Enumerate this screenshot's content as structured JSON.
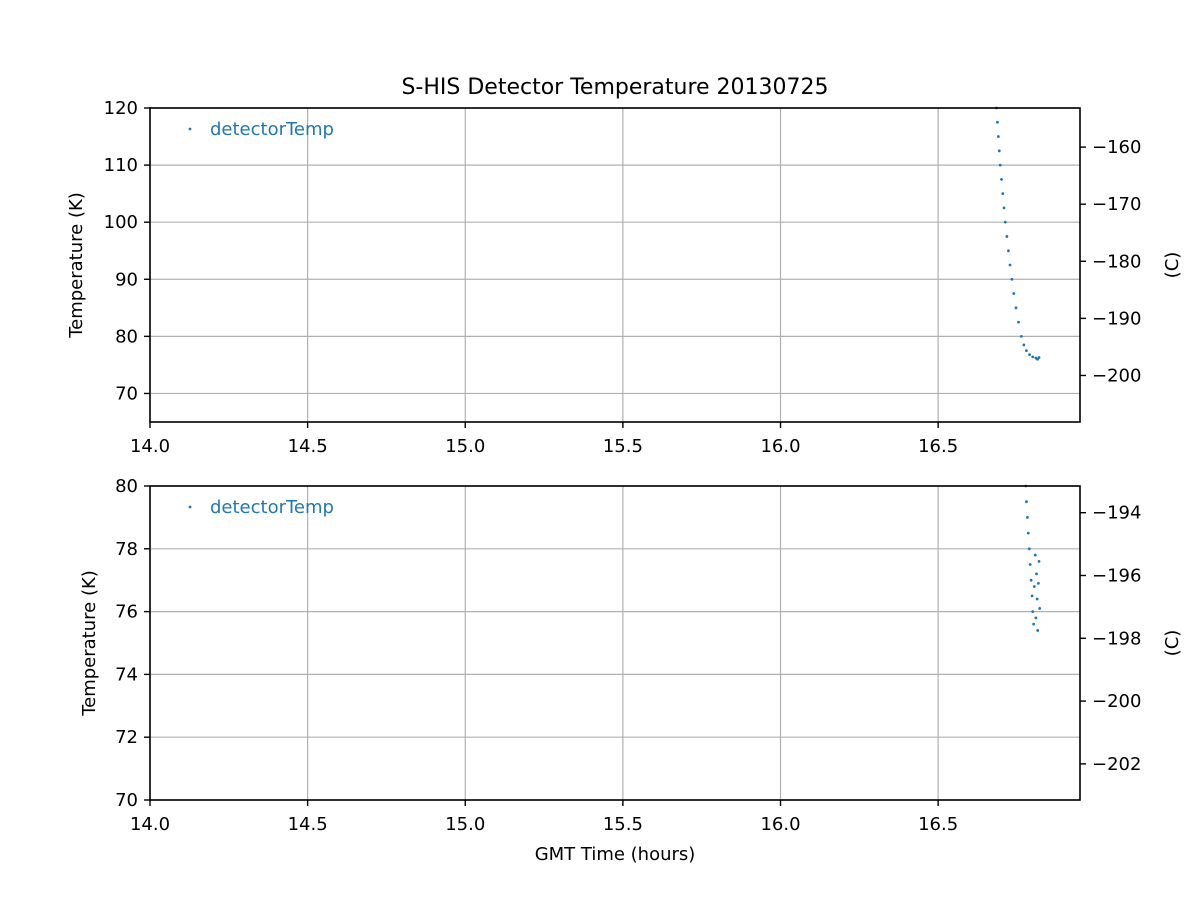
{
  "chart_data": {
    "type": "scatter",
    "title": "S-HIS Detector Temperature 20130725",
    "xlabel": "GMT Time (hours)",
    "series_color": "#1f77b4",
    "panels": [
      {
        "ylabel": "Temperature (K)",
        "ylabel_right": "(C)",
        "xlim": [
          14.0,
          16.95
        ],
        "ylim": [
          65,
          120
        ],
        "xticks": [
          "14.0",
          "14.5",
          "15.0",
          "15.5",
          "16.0",
          "16.5"
        ],
        "xtick_values": [
          14.0,
          14.5,
          15.0,
          15.5,
          16.0,
          16.5
        ],
        "yticks": [
          70,
          80,
          90,
          100,
          110,
          120
        ],
        "yticks_right": [
          -160,
          -170,
          -180,
          -190,
          -200
        ],
        "grid": true,
        "legend": "top-left",
        "series": [
          {
            "name": "detectorTemp",
            "points": [
              [
                16.685,
                120.0
              ],
              [
                16.688,
                117.5
              ],
              [
                16.691,
                115.0
              ],
              [
                16.694,
                112.5
              ],
              [
                16.697,
                110.0
              ],
              [
                16.701,
                107.5
              ],
              [
                16.705,
                105.0
              ],
              [
                16.709,
                102.5
              ],
              [
                16.713,
                100.0
              ],
              [
                16.718,
                97.5
              ],
              [
                16.723,
                95.0
              ],
              [
                16.728,
                92.5
              ],
              [
                16.734,
                90.0
              ],
              [
                16.74,
                87.5
              ],
              [
                16.747,
                85.0
              ],
              [
                16.755,
                82.5
              ],
              [
                16.764,
                80.0
              ],
              [
                16.772,
                78.5
              ],
              [
                16.78,
                77.5
              ],
              [
                16.79,
                76.8
              ],
              [
                16.8,
                76.4
              ],
              [
                16.81,
                76.2
              ],
              [
                16.815,
                76.0
              ],
              [
                16.82,
                76.3
              ]
            ]
          }
        ]
      },
      {
        "ylabel": "Temperature (K)",
        "ylabel_right": "(C)",
        "xlim": [
          14.0,
          16.95
        ],
        "ylim": [
          70,
          80
        ],
        "xticks": [
          "14.0",
          "14.5",
          "15.0",
          "15.5",
          "16.0",
          "16.5"
        ],
        "xtick_values": [
          14.0,
          14.5,
          15.0,
          15.5,
          16.0,
          16.5
        ],
        "yticks": [
          70,
          72,
          74,
          76,
          78,
          80
        ],
        "yticks_right": [
          -194,
          -196,
          -198,
          -200,
          -202
        ],
        "grid": true,
        "legend": "top-left",
        "series": [
          {
            "name": "detectorTemp",
            "points": [
              [
                16.778,
                80.0
              ],
              [
                16.78,
                79.5
              ],
              [
                16.783,
                79.0
              ],
              [
                16.786,
                78.5
              ],
              [
                16.789,
                78.0
              ],
              [
                16.792,
                77.5
              ],
              [
                16.795,
                77.0
              ],
              [
                16.798,
                76.5
              ],
              [
                16.8,
                76.0
              ],
              [
                16.803,
                75.6
              ],
              [
                16.805,
                76.8
              ],
              [
                16.808,
                77.8
              ],
              [
                16.81,
                75.8
              ],
              [
                16.812,
                77.2
              ],
              [
                16.814,
                76.4
              ],
              [
                16.816,
                75.4
              ],
              [
                16.818,
                76.9
              ],
              [
                16.82,
                77.6
              ],
              [
                16.822,
                76.1
              ]
            ]
          }
        ]
      }
    ]
  }
}
